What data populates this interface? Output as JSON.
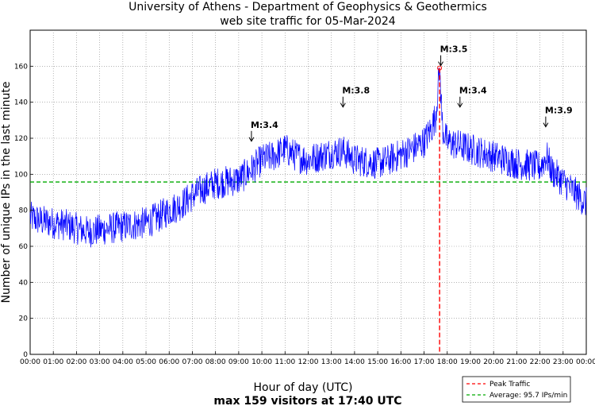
{
  "chart_data": {
    "type": "line",
    "title_line1": "University of Athens - Department of Geophysics & Geothermics",
    "title_line2": "web site traffic for 05-Mar-2024",
    "ylabel": "Number of unique IPs in the last minute",
    "xlabel": "Hour of day (UTC)",
    "subtitle": "max 159 visitors at 17:40 UTC",
    "xlim": [
      0,
      24
    ],
    "ylim": [
      0,
      180
    ],
    "yticks": [
      0,
      20,
      40,
      60,
      80,
      100,
      120,
      140,
      160
    ],
    "xtick_labels": [
      "00:00",
      "01:00",
      "02:00",
      "03:00",
      "04:00",
      "05:00",
      "06:00",
      "07:00",
      "08:00",
      "09:00",
      "10:00",
      "11:00",
      "12:00",
      "13:00",
      "14:00",
      "15:00",
      "16:00",
      "17:00",
      "18:00",
      "19:00",
      "20:00",
      "21:00",
      "22:00",
      "23:00",
      "00:00"
    ],
    "grid": true,
    "series": [
      {
        "name": "Traffic",
        "color": "#0000ff",
        "x": [
          0,
          0.5,
          1,
          1.5,
          2,
          2.5,
          3,
          3.5,
          4,
          4.5,
          5,
          5.5,
          6,
          6.5,
          7,
          7.5,
          8,
          8.5,
          9,
          9.5,
          10,
          10.5,
          11,
          11.5,
          12,
          12.5,
          13,
          13.5,
          14,
          14.5,
          15,
          15.5,
          16,
          16.5,
          17,
          17.3,
          17.5,
          17.67,
          17.8,
          18,
          18.5,
          19,
          19.5,
          20,
          20.5,
          21,
          21.5,
          22,
          22.3,
          22.5,
          23,
          23.5,
          24
        ],
        "values": [
          76,
          74,
          73,
          72,
          70,
          68,
          69,
          70,
          71,
          72,
          73,
          76,
          80,
          83,
          88,
          92,
          95,
          96,
          97,
          102,
          108,
          110,
          114,
          110,
          108,
          110,
          112,
          113,
          108,
          107,
          106,
          108,
          111,
          114,
          118,
          125,
          132,
          159,
          125,
          118,
          116,
          114,
          112,
          110,
          108,
          106,
          105,
          104,
          110,
          102,
          96,
          90,
          84
        ],
        "noise_amplitude": 9
      }
    ],
    "peak": {
      "time": 17.67,
      "value": 159,
      "label": "Peak Traffic",
      "color": "#ff0000"
    },
    "average": {
      "value": 95.7,
      "label": "Average: 95.7 IPs/min",
      "color": "#00aa00"
    },
    "annotations": [
      {
        "label": "M:3.4",
        "time": 9.55,
        "value": 117
      },
      {
        "label": "M:3.8",
        "time": 13.5,
        "value": 136
      },
      {
        "label": "M:3.5",
        "time": 17.72,
        "value": 159
      },
      {
        "label": "M:3.4",
        "time": 18.55,
        "value": 136
      },
      {
        "label": "M:3.9",
        "time": 22.25,
        "value": 125
      }
    ],
    "legend_position": "bottom-right"
  }
}
